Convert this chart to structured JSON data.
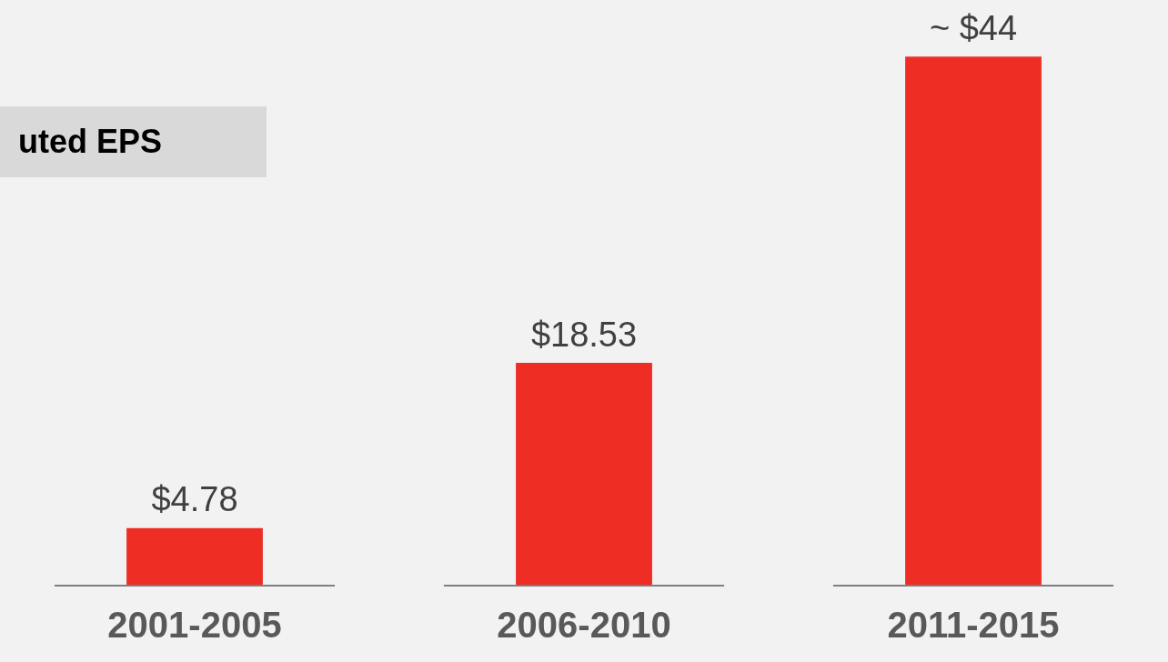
{
  "chart_data": {
    "type": "bar",
    "title": "uted EPS",
    "categories": [
      "2001-2005",
      "2006-2010",
      "2011-2015"
    ],
    "values": [
      4.78,
      18.53,
      44
    ],
    "value_labels": [
      "$4.78",
      "$18.53",
      "~ $44"
    ],
    "color": "#ee2d24",
    "grid": false,
    "legend": false,
    "tick_labels": "x"
  }
}
